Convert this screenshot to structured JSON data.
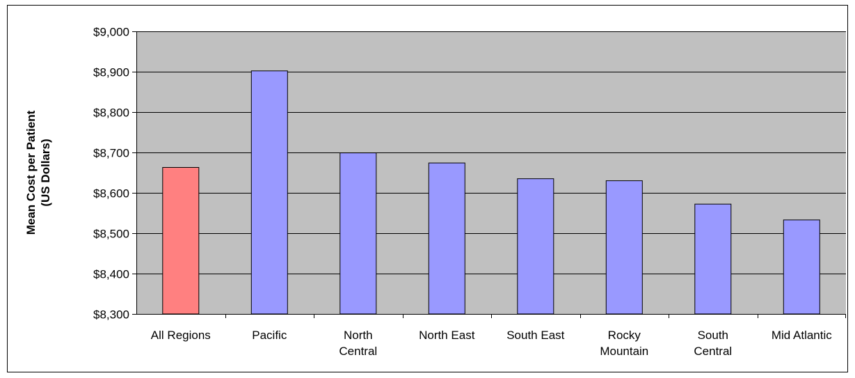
{
  "chart_data": {
    "type": "bar",
    "title": "",
    "xlabel": "",
    "ylabel_lines": [
      "Mean Cost per Patient",
      "(US Dollars)"
    ],
    "categories": [
      [
        "All Regions"
      ],
      [
        "Pacific"
      ],
      [
        "North",
        "Central"
      ],
      [
        "North East"
      ],
      [
        "South East"
      ],
      [
        "Rocky",
        "Mountain"
      ],
      [
        "South",
        "Central"
      ],
      [
        "Mid Atlantic"
      ]
    ],
    "values": [
      8663,
      8902,
      8699,
      8674,
      8635,
      8630,
      8572,
      8533
    ],
    "highlight_index": 0,
    "ylim": [
      8300,
      9000
    ],
    "ytick_step": 100,
    "ytick_prefix": "$",
    "grid": true,
    "legend": "none",
    "colors": {
      "plot_background": "#c0c0c0",
      "highlight_bar": "#ff8080",
      "bar": "#9999ff",
      "gridline": "#000000",
      "bar_border": "#000000"
    }
  }
}
